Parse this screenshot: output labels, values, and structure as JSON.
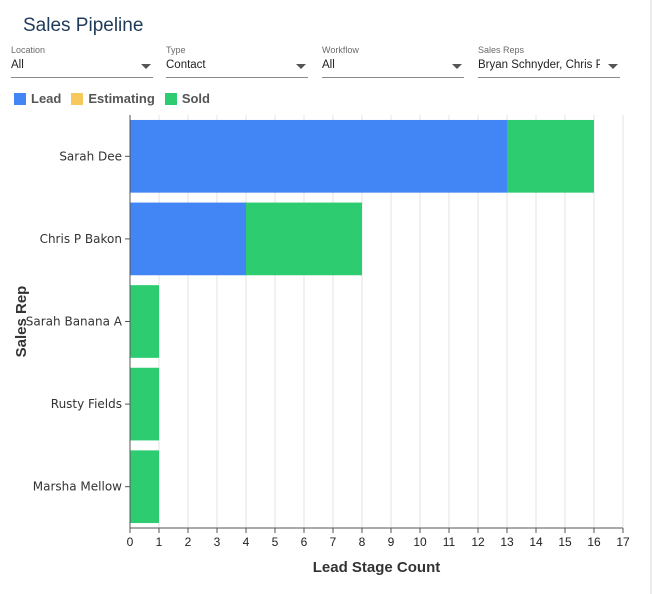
{
  "page": {
    "title": "Sales Pipeline"
  },
  "filters": [
    {
      "label": "Location",
      "value": "All"
    },
    {
      "label": "Type",
      "value": "Contact"
    },
    {
      "label": "Workflow",
      "value": "All"
    },
    {
      "label": "Sales Reps",
      "value": "Bryan Schnyder, Chris P ..."
    }
  ],
  "legend": [
    {
      "label": "Lead",
      "color": "#4285f4"
    },
    {
      "label": "Estimating",
      "color": "#f7c95c"
    },
    {
      "label": "Sold",
      "color": "#2ecc71"
    }
  ],
  "chart_data": {
    "type": "bar",
    "orientation": "horizontal",
    "stacked": true,
    "categories": [
      "Sarah Dee",
      "Chris P Bakon",
      "Sarah Banana A",
      "Rusty Fields",
      "Marsha Mellow"
    ],
    "series": [
      {
        "name": "Lead",
        "color": "#4285f4",
        "values": [
          13,
          4,
          0,
          0,
          0
        ]
      },
      {
        "name": "Estimating",
        "color": "#f7c95c",
        "values": [
          0,
          0,
          0,
          0,
          0
        ]
      },
      {
        "name": "Sold",
        "color": "#2ecc71",
        "values": [
          3,
          4,
          1,
          1,
          1
        ]
      }
    ],
    "xlabel": "Lead Stage Count",
    "ylabel": "Sales Rep",
    "xlim": [
      0,
      17
    ],
    "xticks": [
      0,
      1,
      2,
      3,
      4,
      5,
      6,
      7,
      8,
      9,
      10,
      11,
      12,
      13,
      14,
      15,
      16,
      17
    ],
    "grid": true,
    "legend_position": "top-left"
  }
}
